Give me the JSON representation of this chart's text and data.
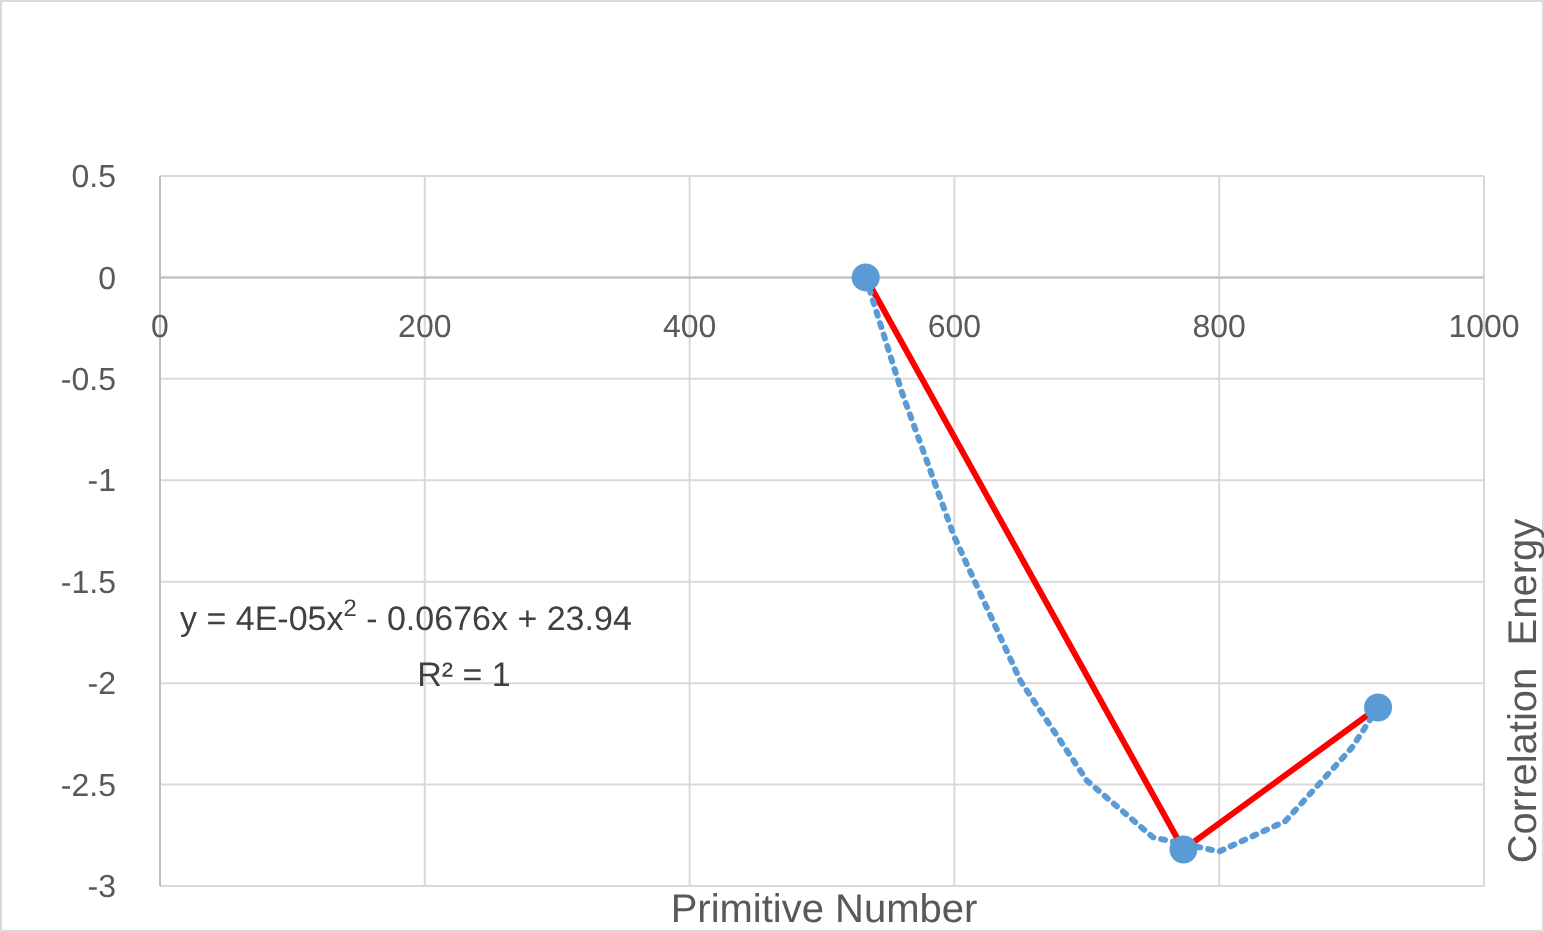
{
  "chart_data": {
    "type": "line",
    "xlabel": "Primitive Number",
    "ylabel": "Correlation  Energy",
    "xlim": [
      0,
      1000
    ],
    "xticks": [
      0,
      200,
      400,
      600,
      800,
      1000
    ],
    "ylim": [
      -3,
      0.5
    ],
    "yticks": [
      -3,
      -2.5,
      -2,
      -1.5,
      -1,
      -0.5,
      0,
      0.5
    ],
    "grid": true,
    "series": [
      {
        "color": "#ff0000",
        "x": [
          533,
          773,
          920
        ],
        "values": [
          0,
          -2.82,
          -2.12
        ],
        "marker": "none",
        "line_style": "solid"
      },
      {
        "color": "#5b9bd5",
        "x": [
          533,
          560,
          600,
          650,
          700,
          750,
          800,
          850,
          900,
          920
        ],
        "values": [
          0,
          -0.56,
          -1.28,
          -1.99,
          -2.48,
          -2.76,
          -2.83,
          -2.68,
          -2.32,
          -2.12
        ],
        "marker": "none",
        "line_style": "dotted"
      },
      {
        "type": "scatter",
        "color": "#5b9bd5",
        "x": [
          533,
          773,
          920
        ],
        "values": [
          0,
          -2.82,
          -2.12
        ],
        "marker": "circle"
      }
    ],
    "annotations": [
      "y = 4E-05x$^{2}$ - 0.0676x + 23.94",
      "R² = 1"
    ]
  }
}
